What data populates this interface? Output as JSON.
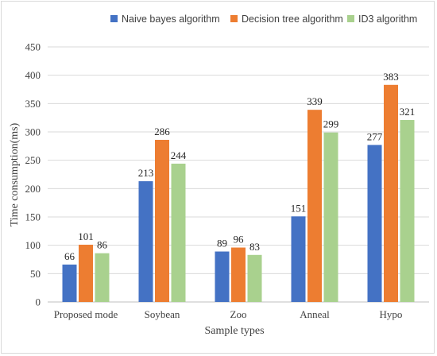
{
  "chart_data": {
    "type": "bar",
    "categories": [
      "Proposed mode",
      "Soybean",
      "Zoo",
      "Anneal",
      "Hypo"
    ],
    "series": [
      {
        "name": "Naive bayes algorithm",
        "color": "#4472c4",
        "values": [
          66,
          213,
          89,
          151,
          277
        ]
      },
      {
        "name": "Decision tree algorithm",
        "color": "#ed7d31",
        "values": [
          101,
          286,
          96,
          339,
          383
        ]
      },
      {
        "name": "ID3 algorithm",
        "color": "#a9d18e",
        "values": [
          86,
          244,
          83,
          299,
          321
        ]
      }
    ],
    "xlabel": "Sample types",
    "ylabel": "Time consumption(ms)",
    "ylim": [
      0,
      450
    ],
    "yticks": [
      0,
      50,
      100,
      150,
      200,
      250,
      300,
      350,
      400,
      450
    ],
    "grid": true,
    "legend": "top"
  }
}
